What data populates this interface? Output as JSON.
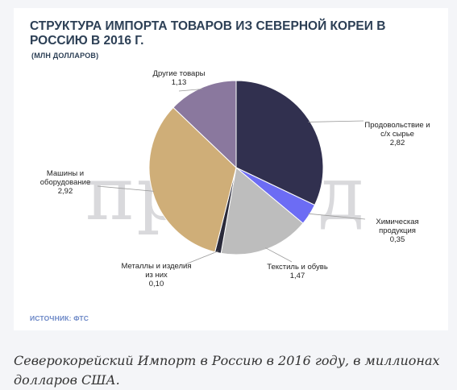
{
  "chart_data": {
    "type": "pie",
    "title": "СТРУКТУРА ИМПОРТА ТОВАРОВ ИЗ СЕВЕРНОЙ КОРЕИ В РОССИЮ В 2016 Г.",
    "subtitle": "(МЛН ДОЛЛАРОВ)",
    "slices": [
      {
        "label_lines": [
          "Продовольствие  и",
          "с/х сырье"
        ],
        "value": 2.82,
        "value_text": "2,82",
        "color": "#31304f"
      },
      {
        "label_lines": [
          "Химическая",
          "продукция"
        ],
        "value": 0.35,
        "value_text": "0,35",
        "color": "#6c6cf4"
      },
      {
        "label_lines": [
          "Текстиль и обувь"
        ],
        "value": 1.47,
        "value_text": "1,47",
        "color": "#bdbdbd"
      },
      {
        "label_lines": [
          "Металлы и изделия",
          "из них"
        ],
        "value": 0.1,
        "value_text": "0,10",
        "color": "#2a2a3a"
      },
      {
        "label_lines": [
          "Машины и",
          "оборудование"
        ],
        "value": 2.92,
        "value_text": "2,92",
        "color": "#cfae78"
      },
      {
        "label_lines": [
          "Другие товары"
        ],
        "value": 1.13,
        "value_text": "1,13",
        "color": "#8a789e"
      }
    ]
  },
  "source": "ИСТОЧНИК: ФТС",
  "watermark": "провэд",
  "caption": "Северокорейский Импорт в Россию в 2016 году, в миллионах долларов США."
}
